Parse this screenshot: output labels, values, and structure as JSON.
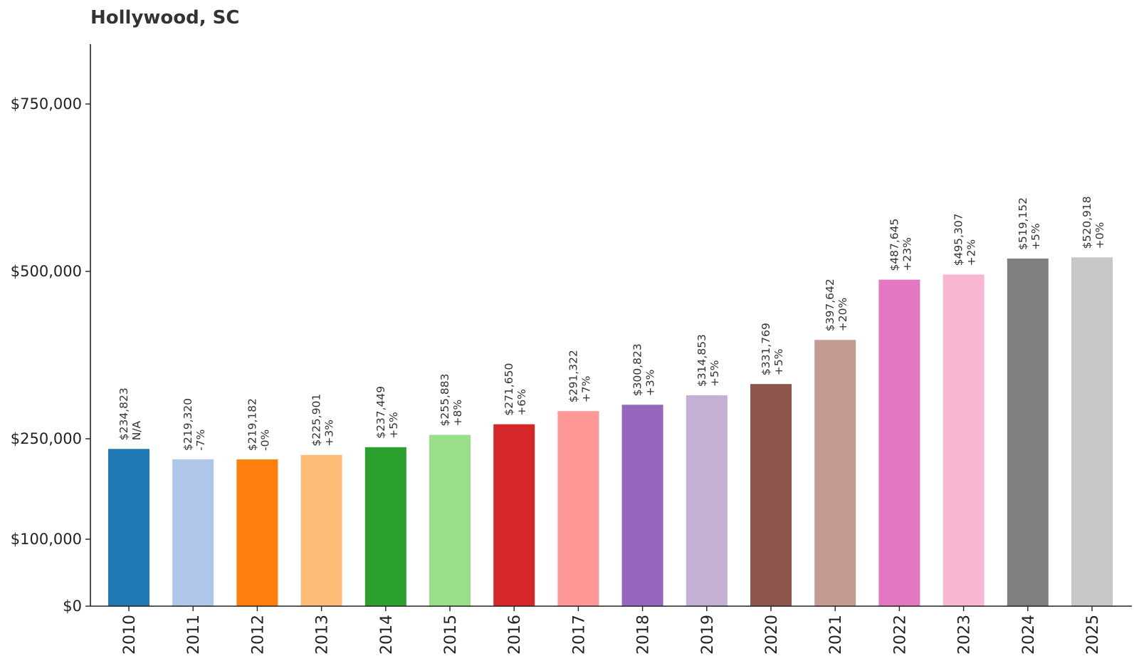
{
  "chart_data": {
    "type": "bar",
    "title": "Hollywood, SC",
    "xlabel": "",
    "ylabel": "",
    "ylim": [
      0,
      840000
    ],
    "yticks": [
      {
        "value": 0,
        "label": "$0"
      },
      {
        "value": 100000,
        "label": "$100,000"
      },
      {
        "value": 250000,
        "label": "$250,000"
      },
      {
        "value": 500000,
        "label": "$500,000"
      },
      {
        "value": 750000,
        "label": "$750,000"
      }
    ],
    "grid": false,
    "legend": "none",
    "categories": [
      "2010",
      "2011",
      "2012",
      "2013",
      "2014",
      "2015",
      "2016",
      "2017",
      "2018",
      "2019",
      "2020",
      "2021",
      "2022",
      "2023",
      "2024",
      "2025"
    ],
    "values": [
      234823,
      219320,
      219182,
      225901,
      237449,
      255883,
      271650,
      291322,
      300823,
      314853,
      331769,
      397642,
      487645,
      495307,
      519152,
      520918
    ],
    "value_labels": [
      "$234,823",
      "$219,320",
      "$219,182",
      "$225,901",
      "$237,449",
      "$255,883",
      "$271,650",
      "$291,322",
      "$300,823",
      "$314,853",
      "$331,769",
      "$397,642",
      "$487,645",
      "$495,307",
      "$519,152",
      "$520,918"
    ],
    "change_labels": [
      "N/A",
      "-7%",
      "-0%",
      "+3%",
      "+5%",
      "+8%",
      "+6%",
      "+7%",
      "+3%",
      "+5%",
      "+5%",
      "+20%",
      "+23%",
      "+2%",
      "+5%",
      "+0%"
    ],
    "colors": [
      "#1f77b4",
      "#aec7e8",
      "#ff7f0e",
      "#ffbb78",
      "#2ca02c",
      "#98df8a",
      "#d62728",
      "#ff9896",
      "#9467bd",
      "#c5b0d5",
      "#8c564b",
      "#c49c94",
      "#e377c2",
      "#f7b6d2",
      "#7f7f7f",
      "#c7c7c7"
    ]
  }
}
